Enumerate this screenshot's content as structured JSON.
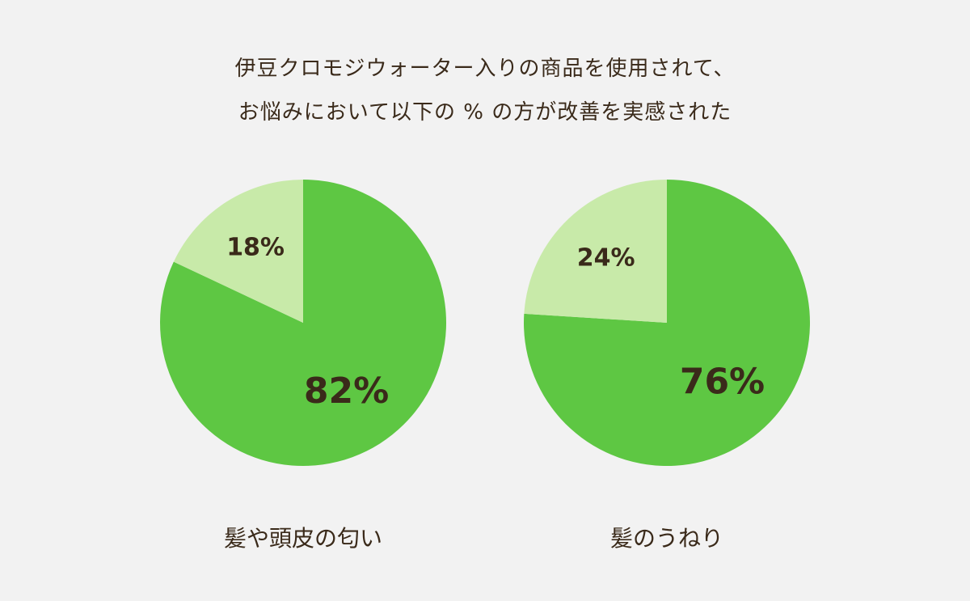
{
  "title": {
    "line1": "伊豆クロモジウォーター入りの商品を使用されて、",
    "line2": "お悩みにおいて以下の % の方が改善を実感された"
  },
  "colors": {
    "improved": "#5ec743",
    "not_improved": "#c8eaa9",
    "text": "#3a2a1a",
    "background": "#f2f2f2"
  },
  "chart_data": [
    {
      "type": "pie",
      "category": "髪や頭皮の匂い",
      "slices": [
        {
          "label": "82%",
          "value": 82,
          "color": "#5ec743"
        },
        {
          "label": "18%",
          "value": 18,
          "color": "#c8eaa9"
        }
      ]
    },
    {
      "type": "pie",
      "category": "髪のうねり",
      "slices": [
        {
          "label": "76%",
          "value": 76,
          "color": "#5ec743"
        },
        {
          "label": "24%",
          "value": 24,
          "color": "#c8eaa9"
        }
      ]
    }
  ]
}
